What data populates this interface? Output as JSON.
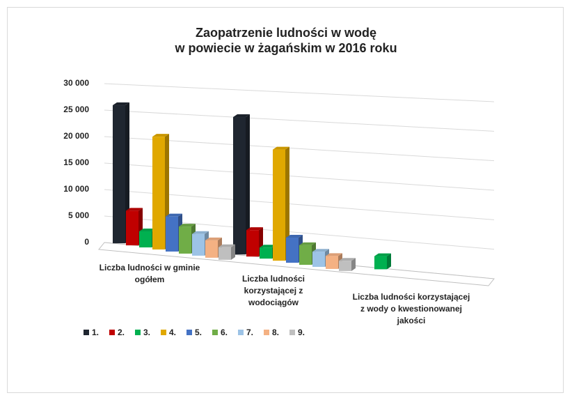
{
  "chart_data": {
    "type": "bar3d",
    "title": "Zaopatrzenie ludności w wodę\nw powiecie w żagańskim w 2016 roku",
    "categories": [
      "Liczba ludności w gminie ogółem",
      "Liczba ludności korzystającej z wodociągów",
      "Liczba ludności korzystającej z wody o kwestionowanej jakości"
    ],
    "series": [
      {
        "name": "1.",
        "color": "#1f2630",
        "values": [
          26000,
          25000,
          null
        ]
      },
      {
        "name": "2.",
        "color": "#c00000",
        "values": [
          6500,
          4800,
          null
        ]
      },
      {
        "name": "3.",
        "color": "#00b050",
        "values": [
          3000,
          2000,
          2300
        ]
      },
      {
        "name": "4.",
        "color": "#e0a800",
        "values": [
          21000,
          20000,
          null
        ]
      },
      {
        "name": "5.",
        "color": "#4472c4",
        "values": [
          6500,
          4500,
          null
        ]
      },
      {
        "name": "6.",
        "color": "#70ad47",
        "values": [
          5000,
          3500,
          null
        ]
      },
      {
        "name": "7.",
        "color": "#9dc3e6",
        "values": [
          4000,
          2700,
          null
        ]
      },
      {
        "name": "8.",
        "color": "#f4b183",
        "values": [
          3200,
          2300,
          null
        ]
      },
      {
        "name": "9.",
        "color": "#bfbfbf",
        "values": [
          2300,
          1800,
          null
        ]
      }
    ],
    "ylim": [
      0,
      30000
    ],
    "yticks": [
      0,
      {
        "value": 5000,
        "label": "5 000"
      },
      {
        "value": 10000,
        "label": "10 000"
      },
      {
        "value": 15000,
        "label": "15 000"
      },
      {
        "value": 20000,
        "label": "20 000"
      },
      {
        "value": 25000,
        "label": "25 000"
      },
      {
        "value": 30000,
        "label": "30 000"
      }
    ],
    "grid": true,
    "legend": "bottom-left"
  }
}
